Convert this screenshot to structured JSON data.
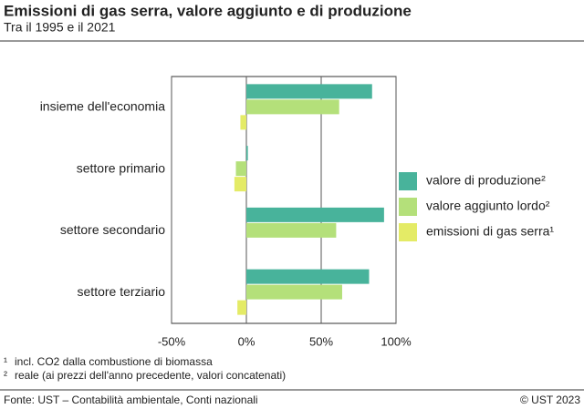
{
  "chart_data": {
    "type": "hbar",
    "title": "Emissioni di gas serra, valore aggiunto e di produzione",
    "subtitle": "Tra il 1995 e il 2021",
    "categories": [
      "insieme dell'economia",
      "settore primario",
      "settore secondario",
      "settore terziario"
    ],
    "series": [
      {
        "name": "valore di produzione²",
        "color": "#48b39b",
        "values": [
          84,
          1,
          92,
          82
        ]
      },
      {
        "name": "valore aggiunto lordo²",
        "color": "#b4e07a",
        "values": [
          62,
          -7,
          60,
          64
        ]
      },
      {
        "name": "emissioni di gas serra¹",
        "color": "#e4eb66",
        "values": [
          -4,
          -8,
          0,
          -6
        ]
      }
    ],
    "xlim": [
      -50,
      100
    ],
    "xticks": [
      {
        "value": -50,
        "label": "-50%"
      },
      {
        "value": 0,
        "label": "0%"
      },
      {
        "value": 50,
        "label": "50%"
      },
      {
        "value": 100,
        "label": "100%"
      }
    ],
    "grid": true,
    "legend": "right"
  },
  "notes": [
    {
      "marker": "¹",
      "text": "incl. CO2 dalla combustione di biomassa"
    },
    {
      "marker": "²",
      "text": "reale (ai prezzi dell'anno precedente, valori concatenati)"
    }
  ],
  "source": "Fonte: UST – Contabilità ambientale, Conti nazionali",
  "copyright": "© UST 2023"
}
